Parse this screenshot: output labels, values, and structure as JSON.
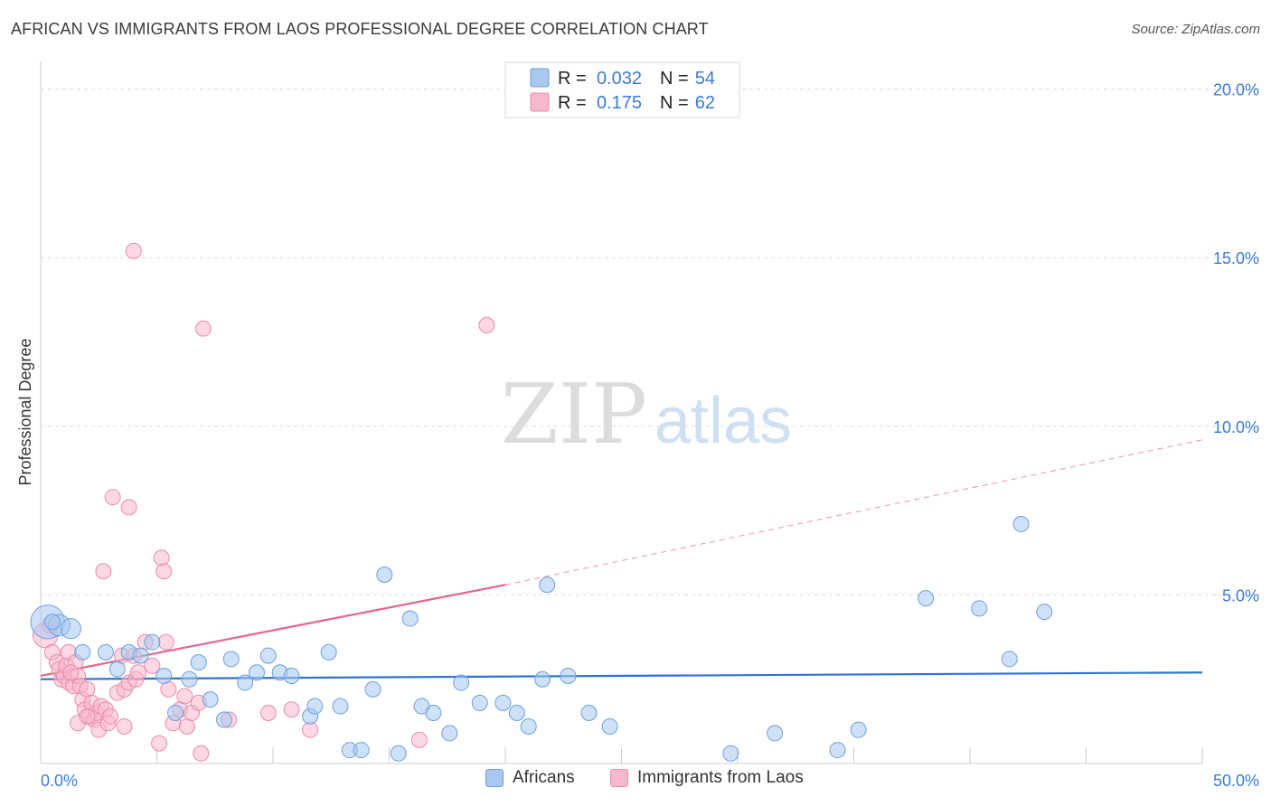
{
  "title": "AFRICAN VS IMMIGRANTS FROM LAOS PROFESSIONAL DEGREE CORRELATION CHART",
  "source": "Source: ZipAtlas.com",
  "watermark": {
    "zip": "ZIP",
    "atlas": "atlas"
  },
  "colors": {
    "blue_fill": "#a8c8f0",
    "blue_stroke": "#6b9fe0",
    "blue_line": "#2f74d0",
    "pink_fill": "#f7b8cc",
    "pink_stroke": "#ec8aaa",
    "pink_line": "#e8628f",
    "tick_text": "#3b7bd4",
    "grid": "#dddddd"
  },
  "chart_data": {
    "type": "scatter",
    "title": "AFRICAN VS IMMIGRANTS FROM LAOS PROFESSIONAL DEGREE CORRELATION CHART",
    "xlabel": "",
    "ylabel": "Professional Degree",
    "xlim": [
      0,
      50
    ],
    "ylim": [
      0,
      20.5
    ],
    "x_tick_labels": [
      "0.0%",
      "50.0%"
    ],
    "y_ticks": [
      5,
      10,
      15,
      20
    ],
    "y_tick_labels": [
      "5.0%",
      "10.0%",
      "15.0%",
      "20.0%"
    ],
    "legend": [
      {
        "name": "Africans",
        "r_label": "R =",
        "r": "0.032",
        "n_label": "N =",
        "n": "54"
      },
      {
        "name": "Immigrants from Laos",
        "r_label": "R =",
        "r": "0.175",
        "n_label": "N =",
        "n": "62"
      }
    ],
    "series": [
      {
        "name": "Africans",
        "trend": {
          "x0": 0,
          "y0": 2.5,
          "x1": 50,
          "y1": 2.7
        },
        "points": [
          {
            "x": 0.3,
            "y": 4.2,
            "s": 2.2
          },
          {
            "x": 0.8,
            "y": 4.1,
            "s": 1.4
          },
          {
            "x": 1.3,
            "y": 4.0,
            "s": 1.3
          },
          {
            "x": 1.8,
            "y": 3.3
          },
          {
            "x": 2.8,
            "y": 3.3
          },
          {
            "x": 3.3,
            "y": 2.8
          },
          {
            "x": 3.8,
            "y": 3.3
          },
          {
            "x": 4.3,
            "y": 3.2
          },
          {
            "x": 4.8,
            "y": 3.6
          },
          {
            "x": 5.3,
            "y": 2.6
          },
          {
            "x": 5.8,
            "y": 1.5
          },
          {
            "x": 6.4,
            "y": 2.5
          },
          {
            "x": 6.8,
            "y": 3.0
          },
          {
            "x": 7.3,
            "y": 1.9
          },
          {
            "x": 7.9,
            "y": 1.3
          },
          {
            "x": 8.2,
            "y": 3.1
          },
          {
            "x": 8.8,
            "y": 2.4
          },
          {
            "x": 9.3,
            "y": 2.7
          },
          {
            "x": 9.8,
            "y": 3.2
          },
          {
            "x": 10.3,
            "y": 2.7
          },
          {
            "x": 10.8,
            "y": 2.6
          },
          {
            "x": 11.6,
            "y": 1.4
          },
          {
            "x": 11.8,
            "y": 1.7
          },
          {
            "x": 12.4,
            "y": 3.3
          },
          {
            "x": 12.9,
            "y": 1.7
          },
          {
            "x": 13.3,
            "y": 0.4
          },
          {
            "x": 13.8,
            "y": 0.4
          },
          {
            "x": 14.3,
            "y": 2.2
          },
          {
            "x": 14.8,
            "y": 5.6
          },
          {
            "x": 15.4,
            "y": 0.3
          },
          {
            "x": 15.9,
            "y": 4.3
          },
          {
            "x": 16.4,
            "y": 1.7
          },
          {
            "x": 16.9,
            "y": 1.5
          },
          {
            "x": 17.6,
            "y": 0.9
          },
          {
            "x": 18.1,
            "y": 2.4
          },
          {
            "x": 18.9,
            "y": 1.8
          },
          {
            "x": 19.9,
            "y": 1.8
          },
          {
            "x": 20.5,
            "y": 1.5
          },
          {
            "x": 21.0,
            "y": 1.1
          },
          {
            "x": 21.6,
            "y": 2.5
          },
          {
            "x": 21.8,
            "y": 5.3
          },
          {
            "x": 22.7,
            "y": 2.6
          },
          {
            "x": 23.6,
            "y": 1.5
          },
          {
            "x": 24.5,
            "y": 1.1
          },
          {
            "x": 29.7,
            "y": 0.3
          },
          {
            "x": 31.6,
            "y": 0.9
          },
          {
            "x": 34.3,
            "y": 0.4
          },
          {
            "x": 35.2,
            "y": 1.0
          },
          {
            "x": 38.1,
            "y": 4.9
          },
          {
            "x": 40.4,
            "y": 4.6
          },
          {
            "x": 41.7,
            "y": 3.1
          },
          {
            "x": 42.2,
            "y": 7.1
          },
          {
            "x": 43.2,
            "y": 4.5
          },
          {
            "x": 0.5,
            "y": 4.2
          }
        ]
      },
      {
        "name": "Immigrants from Laos",
        "trend": {
          "x0": 0,
          "y0": 2.6,
          "x1": 20,
          "y1": 5.3,
          "x_dash_end": 50,
          "y_dash_end": 9.6
        },
        "points": [
          {
            "x": 0.2,
            "y": 3.8,
            "s": 1.6
          },
          {
            "x": 0.4,
            "y": 4.1
          },
          {
            "x": 0.5,
            "y": 3.3
          },
          {
            "x": 0.7,
            "y": 3.0
          },
          {
            "x": 0.8,
            "y": 2.8
          },
          {
            "x": 0.9,
            "y": 2.5
          },
          {
            "x": 1.0,
            "y": 2.6
          },
          {
            "x": 1.1,
            "y": 2.9
          },
          {
            "x": 1.2,
            "y": 2.4
          },
          {
            "x": 1.2,
            "y": 3.3
          },
          {
            "x": 1.4,
            "y": 2.3
          },
          {
            "x": 1.5,
            "y": 3.0
          },
          {
            "x": 1.6,
            "y": 2.6
          },
          {
            "x": 1.6,
            "y": 1.2
          },
          {
            "x": 1.7,
            "y": 2.3
          },
          {
            "x": 1.8,
            "y": 1.9
          },
          {
            "x": 1.9,
            "y": 1.6
          },
          {
            "x": 2.0,
            "y": 2.2
          },
          {
            "x": 2.1,
            "y": 1.4
          },
          {
            "x": 2.2,
            "y": 1.8
          },
          {
            "x": 2.3,
            "y": 1.3
          },
          {
            "x": 2.4,
            "y": 1.5
          },
          {
            "x": 2.5,
            "y": 1.0
          },
          {
            "x": 2.6,
            "y": 1.7
          },
          {
            "x": 2.7,
            "y": 5.7
          },
          {
            "x": 2.8,
            "y": 1.6
          },
          {
            "x": 2.9,
            "y": 1.2
          },
          {
            "x": 3.0,
            "y": 1.4
          },
          {
            "x": 3.1,
            "y": 7.9
          },
          {
            "x": 3.3,
            "y": 2.1
          },
          {
            "x": 3.5,
            "y": 3.2
          },
          {
            "x": 3.6,
            "y": 1.1
          },
          {
            "x": 3.6,
            "y": 2.2
          },
          {
            "x": 3.8,
            "y": 2.4
          },
          {
            "x": 3.8,
            "y": 7.6
          },
          {
            "x": 4.0,
            "y": 15.2
          },
          {
            "x": 4.0,
            "y": 3.2
          },
          {
            "x": 4.1,
            "y": 2.5
          },
          {
            "x": 4.2,
            "y": 2.7
          },
          {
            "x": 4.5,
            "y": 3.6
          },
          {
            "x": 4.8,
            "y": 2.9
          },
          {
            "x": 5.1,
            "y": 0.6
          },
          {
            "x": 5.2,
            "y": 6.1
          },
          {
            "x": 5.3,
            "y": 5.7
          },
          {
            "x": 5.4,
            "y": 3.6
          },
          {
            "x": 5.5,
            "y": 2.2
          },
          {
            "x": 5.7,
            "y": 1.2
          },
          {
            "x": 6.0,
            "y": 1.6
          },
          {
            "x": 6.2,
            "y": 2.0
          },
          {
            "x": 6.3,
            "y": 1.1
          },
          {
            "x": 6.5,
            "y": 1.5
          },
          {
            "x": 6.8,
            "y": 1.8
          },
          {
            "x": 6.9,
            "y": 0.3
          },
          {
            "x": 7.0,
            "y": 12.9
          },
          {
            "x": 8.1,
            "y": 1.3
          },
          {
            "x": 9.8,
            "y": 1.5
          },
          {
            "x": 10.8,
            "y": 1.6
          },
          {
            "x": 11.6,
            "y": 1.0
          },
          {
            "x": 16.3,
            "y": 0.7
          },
          {
            "x": 19.2,
            "y": 13.0
          },
          {
            "x": 1.3,
            "y": 2.7
          },
          {
            "x": 2.0,
            "y": 1.4
          }
        ]
      }
    ]
  },
  "bottom_legend": [
    {
      "label": "Africans"
    },
    {
      "label": "Immigrants from Laos"
    }
  ]
}
